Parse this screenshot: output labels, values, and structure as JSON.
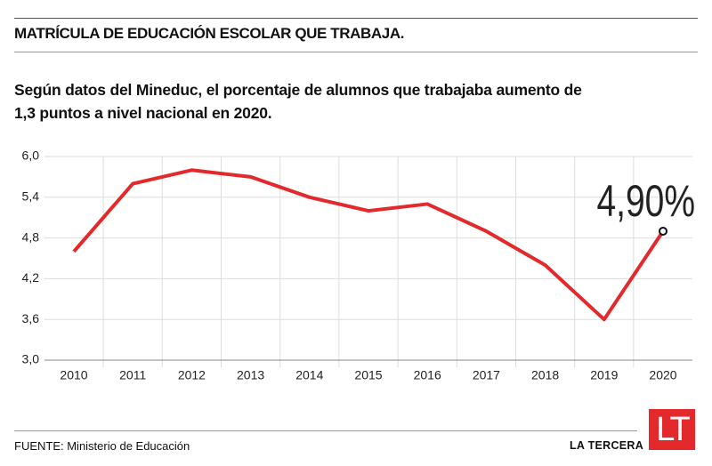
{
  "chart_data": {
    "type": "line",
    "title": "MATRÍCULA DE EDUCACIÓN ESCOLAR QUE TRABAJA.",
    "subtitle": "Según datos del Mineduc, el porcentaje de alumnos que trabajaba aumento de 1,3 puntos a nivel nacional en 2020.",
    "categories": [
      "2010",
      "2011",
      "2012",
      "2013",
      "2014",
      "2015",
      "2016",
      "2017",
      "2018",
      "2019",
      "2020"
    ],
    "values": [
      4.6,
      5.6,
      5.8,
      5.7,
      5.4,
      5.2,
      5.3,
      4.9,
      4.4,
      3.6,
      4.9
    ],
    "value_labels": [
      null,
      null,
      null,
      null,
      null,
      null,
      null,
      null,
      null,
      null,
      "4,90%"
    ],
    "color": "#e3292c",
    "ylim": [
      3.0,
      6.0
    ],
    "yticks": [
      {
        "value": 3.0,
        "label": "3,0"
      },
      {
        "value": 3.6,
        "label": "3,6"
      },
      {
        "value": 4.2,
        "label": "4,2"
      },
      {
        "value": 4.8,
        "label": "4,8"
      },
      {
        "value": 5.4,
        "label": "5,4"
      },
      {
        "value": 6.0,
        "label": "6,0"
      }
    ],
    "grid": true,
    "source": "FUENTE: Ministerio de Educación",
    "brand": "LA TERCERA",
    "logo": "LT"
  }
}
